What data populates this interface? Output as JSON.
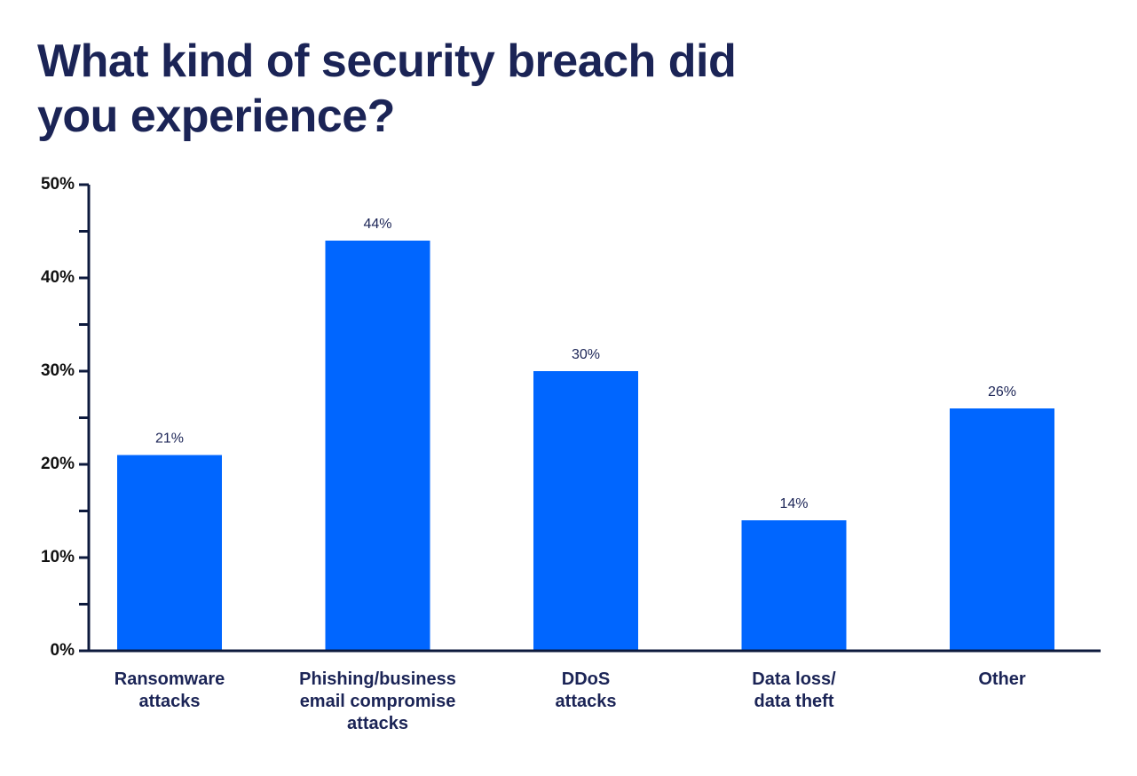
{
  "chart_data": {
    "type": "bar",
    "title": "What kind of security breach did you experience?",
    "categories": [
      "Ransomware\nattacks",
      "Phishing/business\nemail compromise\nattacks",
      "DDoS\nattacks",
      "Data loss/\ndata theft",
      "Other"
    ],
    "values": [
      21,
      44,
      30,
      14,
      26
    ],
    "value_labels": [
      "21%",
      "44%",
      "30%",
      "14%",
      "26%"
    ],
    "color": "#0066ff",
    "ylim": [
      0,
      50
    ],
    "yticks": [
      {
        "value": 0,
        "label": "0%"
      },
      {
        "value": 10,
        "label": "10%"
      },
      {
        "value": 20,
        "label": "20%"
      },
      {
        "value": 30,
        "label": "30%"
      },
      {
        "value": 40,
        "label": "40%"
      },
      {
        "value": 50,
        "label": "50%"
      }
    ],
    "minor_yticks": [
      5,
      15,
      25,
      35,
      45
    ]
  }
}
